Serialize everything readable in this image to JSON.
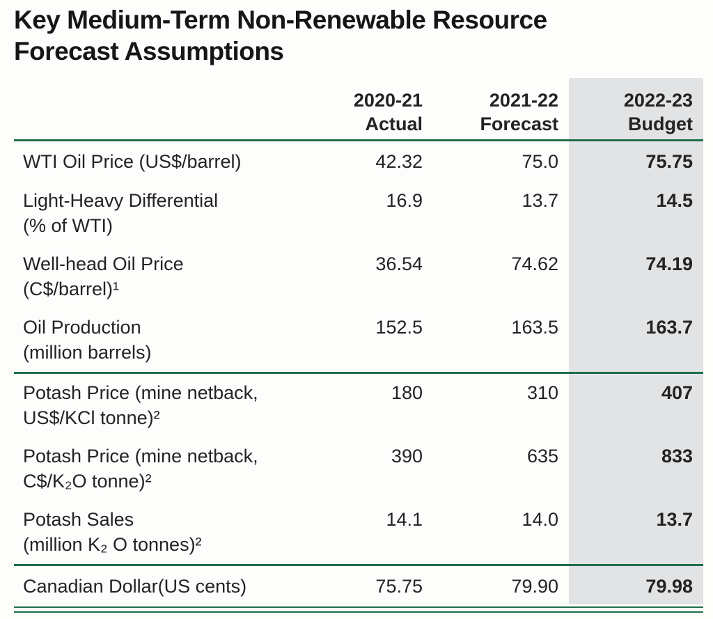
{
  "title": {
    "line1": "Key Medium-Term Non-Renewable Resource",
    "line2": "Forecast Assumptions"
  },
  "columns": [
    {
      "line1": "2020-21",
      "line2": "Actual"
    },
    {
      "line1": "2021-22",
      "line2": "Forecast"
    },
    {
      "line1": "2022-23",
      "line2": "Budget",
      "highlighted": true
    }
  ],
  "colors": {
    "accent_green": "#1f6f49",
    "highlight_gray": "#e2e3e4",
    "text": "#232323"
  },
  "sections": [
    {
      "rows": [
        {
          "label_lines": [
            "WTI Oil Price (US$/barrel)"
          ],
          "values": [
            "42.32",
            "75.0",
            "75.75"
          ]
        },
        {
          "label_lines": [
            "Light-Heavy Differential",
            "(% of WTI)"
          ],
          "values": [
            "16.9",
            "13.7",
            "14.5"
          ]
        },
        {
          "label_lines": [
            "Well-head Oil Price",
            "(C$/barrel)¹"
          ],
          "values": [
            "36.54",
            "74.62",
            "74.19"
          ]
        },
        {
          "label_lines": [
            "Oil Production",
            "(million barrels)"
          ],
          "values": [
            "152.5",
            "163.5",
            "163.7"
          ]
        }
      ]
    },
    {
      "rows": [
        {
          "label_lines": [
            "Potash Price (mine netback,",
            "US$/KCl tonne)²"
          ],
          "values": [
            "180",
            "310",
            "407"
          ]
        },
        {
          "label_lines": [
            "Potash Price (mine netback,",
            "C$/K₂O tonne)²"
          ],
          "values": [
            "390",
            "635",
            "833"
          ]
        },
        {
          "label_lines": [
            "Potash Sales",
            "(million K₂ O tonnes)²"
          ],
          "values": [
            "14.1",
            "14.0",
            "13.7"
          ]
        }
      ]
    },
    {
      "rows": [
        {
          "label_lines": [
            "Canadian Dollar(US cents)"
          ],
          "values": [
            "75.75",
            "79.90",
            "79.98"
          ]
        }
      ]
    }
  ]
}
